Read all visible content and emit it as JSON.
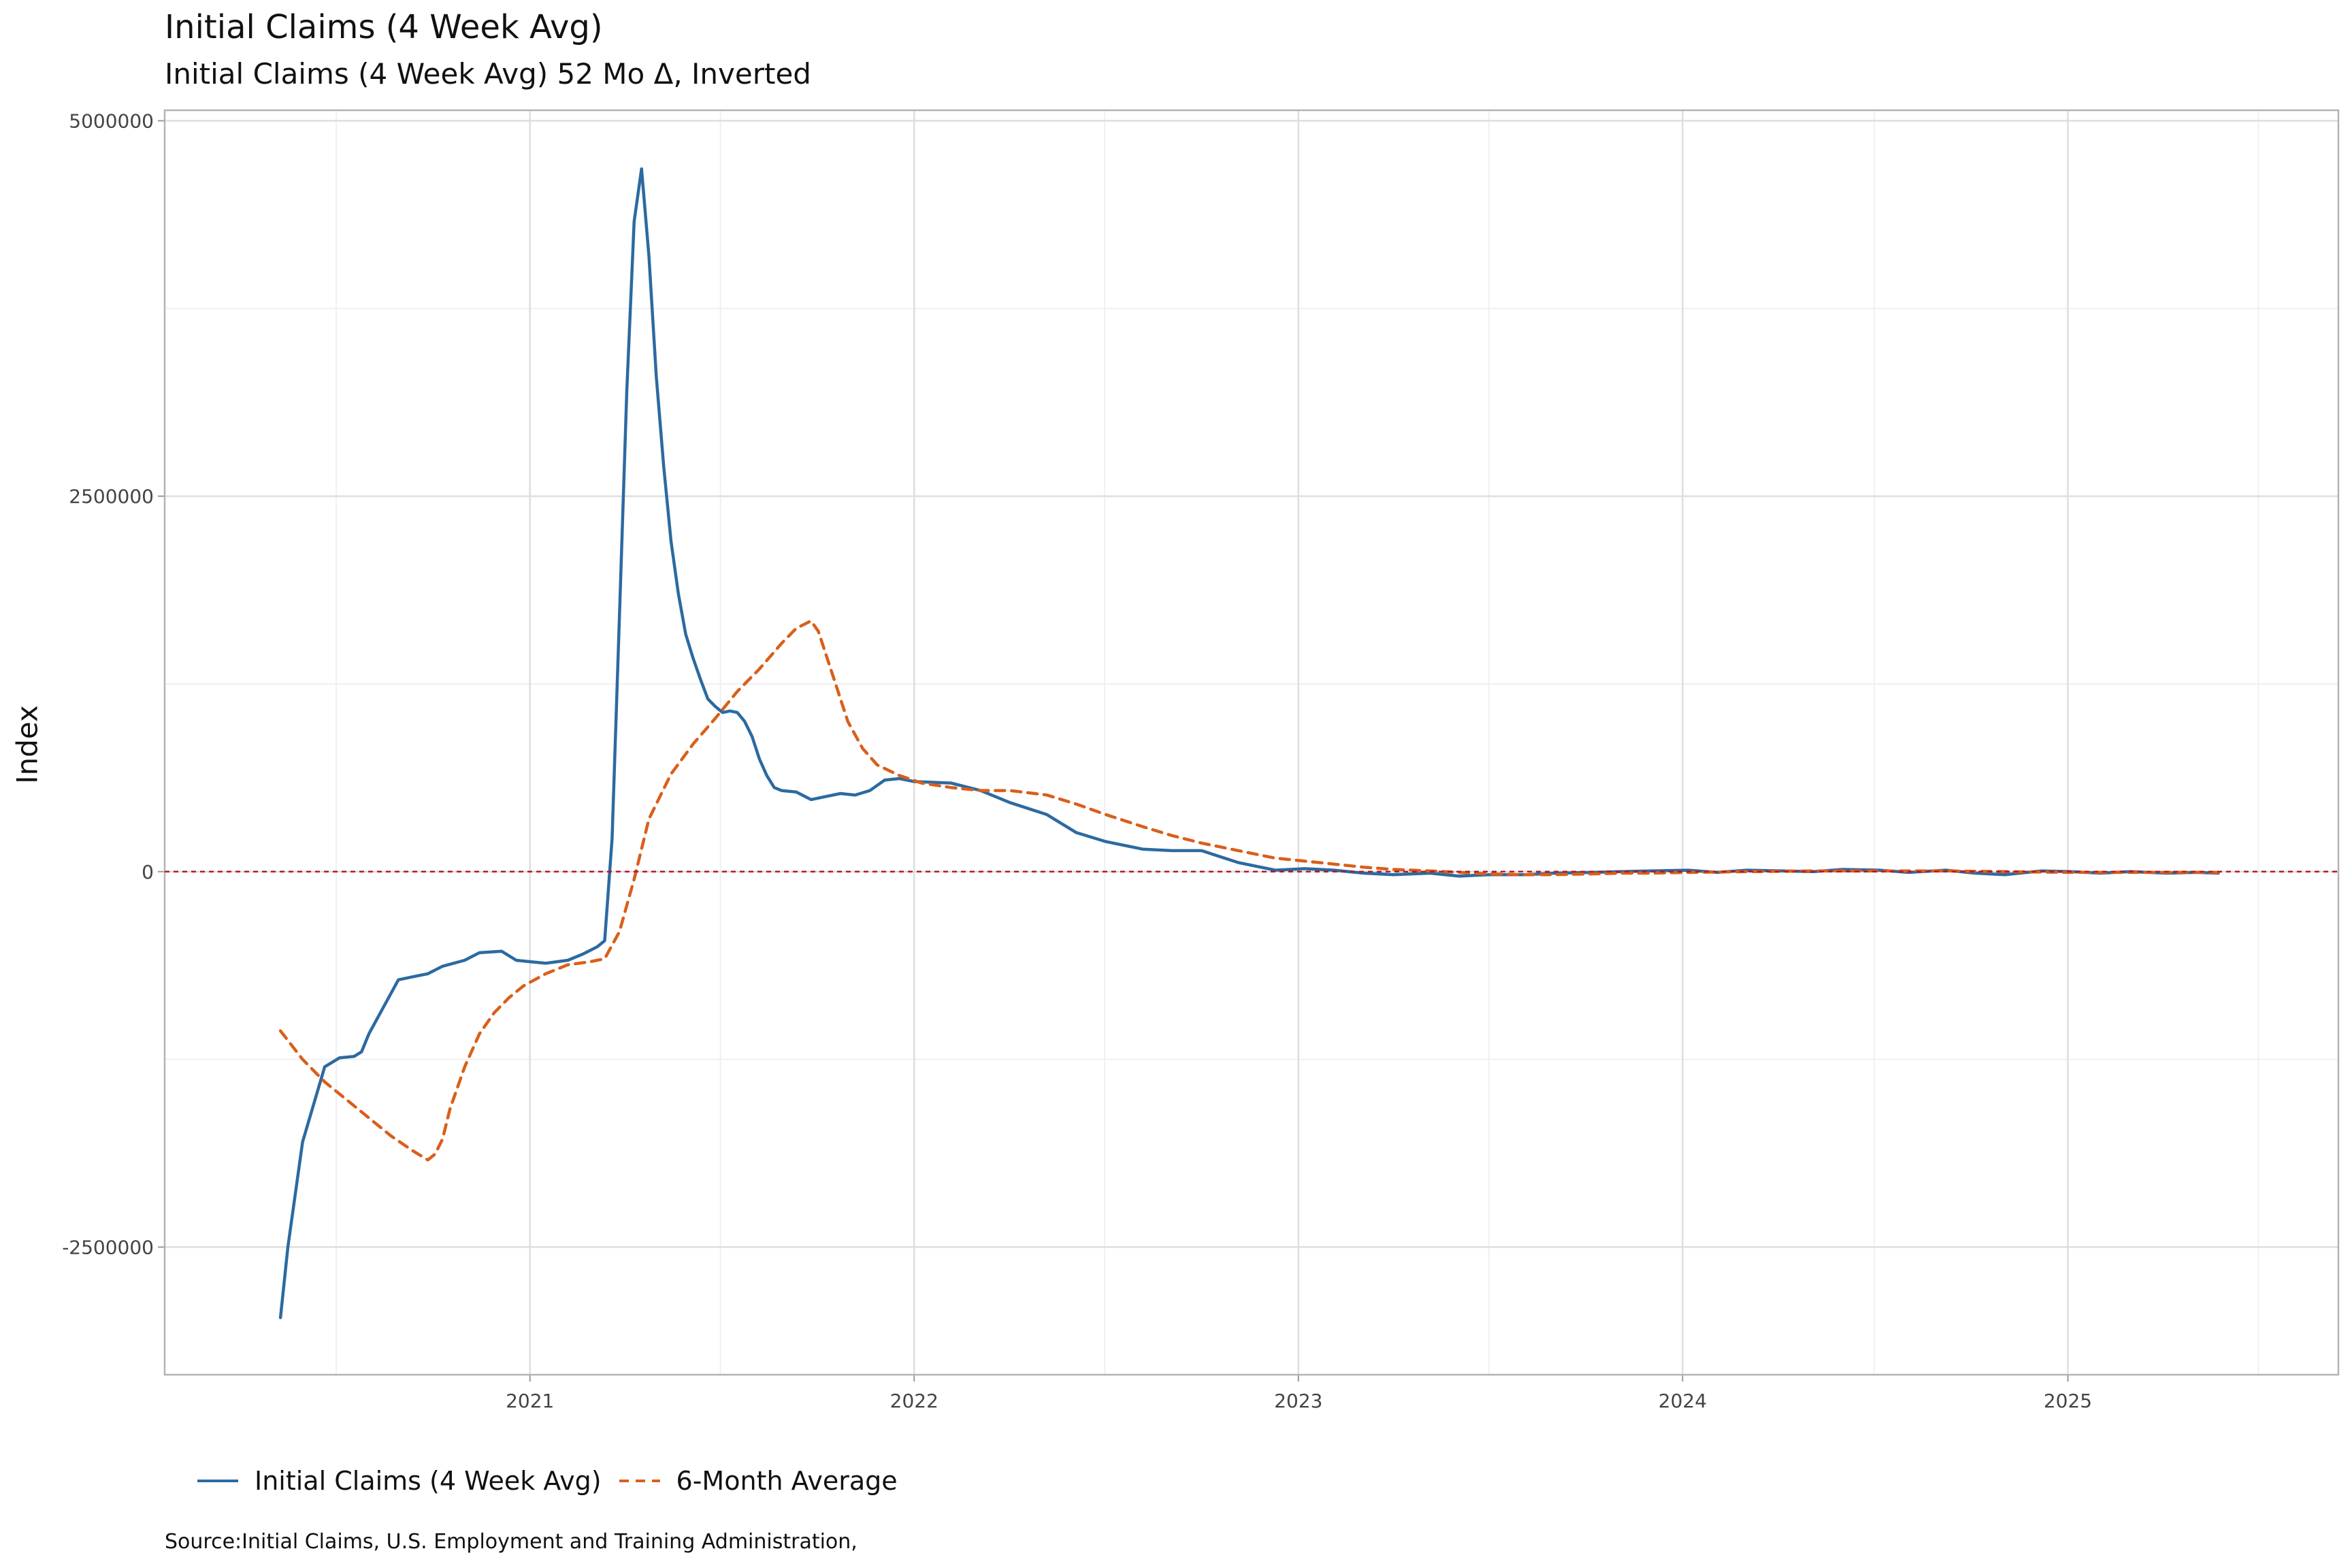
{
  "chart_data": {
    "type": "line",
    "title": "Initial Claims (4 Week Avg)",
    "subtitle": "Initial Claims (4 Week Avg) 52 Mo Δ, Inverted",
    "ylabel": "Index",
    "xlabel": "",
    "source": "Source:Initial Claims, U.S. Employment and Training Administration,",
    "ylim": [
      -3350000,
      5070000
    ],
    "xlim": [
      "2020-01-20",
      "2025-09-15"
    ],
    "y_ticks": [
      -2500000,
      0,
      2500000,
      5000000
    ],
    "y_tick_labels": [
      "-2500000",
      "0",
      "2500000",
      "5000000"
    ],
    "x_ticks": [
      "2021-01-01",
      "2022-01-01",
      "2023-01-01",
      "2024-01-01",
      "2025-01-01"
    ],
    "x_tick_labels": [
      "2021",
      "2022",
      "2023",
      "2024",
      "2025"
    ],
    "grid": true,
    "legend_position": "bottom-left",
    "reference_line": {
      "y": 0,
      "style": "dashed",
      "color": "#b2182b"
    },
    "series": [
      {
        "name": "Initial Claims (4 Week Avg)",
        "color": "#2c6aa0",
        "style": "solid",
        "points": [
          [
            "2020-05-09",
            -2970000
          ],
          [
            "2020-05-16",
            -2500000
          ],
          [
            "2020-05-30",
            -1800000
          ],
          [
            "2020-06-20",
            -1300000
          ],
          [
            "2020-07-04",
            -1240000
          ],
          [
            "2020-07-18",
            -1230000
          ],
          [
            "2020-07-25",
            -1200000
          ],
          [
            "2020-08-01",
            -1080000
          ],
          [
            "2020-08-15",
            -900000
          ],
          [
            "2020-08-29",
            -720000
          ],
          [
            "2020-09-12",
            -700000
          ],
          [
            "2020-09-26",
            -680000
          ],
          [
            "2020-10-10",
            -630000
          ],
          [
            "2020-10-31",
            -590000
          ],
          [
            "2020-11-14",
            -540000
          ],
          [
            "2020-12-05",
            -530000
          ],
          [
            "2020-12-19",
            -590000
          ],
          [
            "2021-01-02",
            -600000
          ],
          [
            "2021-01-16",
            -610000
          ],
          [
            "2021-02-06",
            -590000
          ],
          [
            "2021-02-20",
            -550000
          ],
          [
            "2021-03-06",
            -500000
          ],
          [
            "2021-03-13",
            -460000
          ],
          [
            "2021-03-20",
            220000
          ],
          [
            "2021-03-27",
            1700000
          ],
          [
            "2021-04-03",
            3200000
          ],
          [
            "2021-04-10",
            4330000
          ],
          [
            "2021-04-17",
            4680000
          ],
          [
            "2021-04-24",
            4100000
          ],
          [
            "2021-05-01",
            3300000
          ],
          [
            "2021-05-08",
            2700000
          ],
          [
            "2021-05-15",
            2200000
          ],
          [
            "2021-05-22",
            1850000
          ],
          [
            "2021-05-29",
            1580000
          ],
          [
            "2021-06-05",
            1420000
          ],
          [
            "2021-06-12",
            1280000
          ],
          [
            "2021-06-19",
            1150000
          ],
          [
            "2021-06-26",
            1100000
          ],
          [
            "2021-07-03",
            1060000
          ],
          [
            "2021-07-10",
            1070000
          ],
          [
            "2021-07-17",
            1060000
          ],
          [
            "2021-07-24",
            1000000
          ],
          [
            "2021-07-31",
            900000
          ],
          [
            "2021-08-07",
            750000
          ],
          [
            "2021-08-14",
            640000
          ],
          [
            "2021-08-21",
            560000
          ],
          [
            "2021-08-28",
            540000
          ],
          [
            "2021-09-11",
            530000
          ],
          [
            "2021-09-25",
            480000
          ],
          [
            "2021-10-09",
            500000
          ],
          [
            "2021-10-23",
            520000
          ],
          [
            "2021-11-06",
            510000
          ],
          [
            "2021-11-20",
            540000
          ],
          [
            "2021-12-04",
            610000
          ],
          [
            "2021-12-18",
            620000
          ],
          [
            "2022-01-01",
            600000
          ],
          [
            "2022-02-05",
            590000
          ],
          [
            "2022-03-05",
            540000
          ],
          [
            "2022-04-02",
            460000
          ],
          [
            "2022-05-07",
            380000
          ],
          [
            "2022-06-04",
            260000
          ],
          [
            "2022-07-02",
            200000
          ],
          [
            "2022-08-06",
            150000
          ],
          [
            "2022-09-03",
            140000
          ],
          [
            "2022-10-01",
            140000
          ],
          [
            "2022-11-05",
            60000
          ],
          [
            "2022-12-10",
            10000
          ],
          [
            "2023-01-07",
            20000
          ],
          [
            "2023-02-04",
            10000
          ],
          [
            "2023-03-04",
            -10000
          ],
          [
            "2023-04-01",
            -20000
          ],
          [
            "2023-05-06",
            -10000
          ],
          [
            "2023-06-03",
            -30000
          ],
          [
            "2023-07-01",
            -20000
          ],
          [
            "2023-08-05",
            -20000
          ],
          [
            "2023-09-02",
            -10000
          ],
          [
            "2023-10-07",
            -5000
          ],
          [
            "2023-11-04",
            0
          ],
          [
            "2023-12-02",
            5000
          ],
          [
            "2024-01-06",
            10000
          ],
          [
            "2024-02-03",
            -5000
          ],
          [
            "2024-03-02",
            10000
          ],
          [
            "2024-04-06",
            5000
          ],
          [
            "2024-05-04",
            0
          ],
          [
            "2024-06-01",
            15000
          ],
          [
            "2024-07-06",
            10000
          ],
          [
            "2024-08-03",
            -5000
          ],
          [
            "2024-09-07",
            10000
          ],
          [
            "2024-10-05",
            -10000
          ],
          [
            "2024-11-02",
            -20000
          ],
          [
            "2024-12-07",
            5000
          ],
          [
            "2025-01-04",
            0
          ],
          [
            "2025-02-01",
            -10000
          ],
          [
            "2025-03-01",
            0
          ],
          [
            "2025-04-05",
            -10000
          ],
          [
            "2025-05-03",
            -5000
          ],
          [
            "2025-05-24",
            -10000
          ]
        ]
      },
      {
        "name": "6-Month Average",
        "color": "#d95f1a",
        "style": "dashed",
        "points": [
          [
            "2020-05-09",
            -1060000
          ],
          [
            "2020-05-30",
            -1250000
          ],
          [
            "2020-06-20",
            -1400000
          ],
          [
            "2020-07-11",
            -1520000
          ],
          [
            "2020-08-01",
            -1640000
          ],
          [
            "2020-08-22",
            -1760000
          ],
          [
            "2020-09-12",
            -1860000
          ],
          [
            "2020-09-26",
            -1920000
          ],
          [
            "2020-10-03",
            -1880000
          ],
          [
            "2020-10-10",
            -1780000
          ],
          [
            "2020-10-17",
            -1580000
          ],
          [
            "2020-10-31",
            -1300000
          ],
          [
            "2020-11-14",
            -1080000
          ],
          [
            "2020-11-28",
            -940000
          ],
          [
            "2020-12-12",
            -840000
          ],
          [
            "2020-12-26",
            -760000
          ],
          [
            "2021-01-16",
            -680000
          ],
          [
            "2021-02-06",
            -620000
          ],
          [
            "2021-02-27",
            -600000
          ],
          [
            "2021-03-13",
            -580000
          ],
          [
            "2021-03-27",
            -400000
          ],
          [
            "2021-04-10",
            -50000
          ],
          [
            "2021-04-24",
            350000
          ],
          [
            "2021-05-15",
            650000
          ],
          [
            "2021-06-05",
            850000
          ],
          [
            "2021-06-26",
            1020000
          ],
          [
            "2021-07-17",
            1200000
          ],
          [
            "2021-08-07",
            1350000
          ],
          [
            "2021-08-28",
            1520000
          ],
          [
            "2021-09-11",
            1620000
          ],
          [
            "2021-09-25",
            1670000
          ],
          [
            "2021-10-02",
            1600000
          ],
          [
            "2021-10-16",
            1300000
          ],
          [
            "2021-10-30",
            1000000
          ],
          [
            "2021-11-13",
            820000
          ],
          [
            "2021-11-27",
            710000
          ],
          [
            "2021-12-18",
            640000
          ],
          [
            "2022-01-08",
            590000
          ],
          [
            "2022-02-05",
            560000
          ],
          [
            "2022-03-05",
            540000
          ],
          [
            "2022-04-02",
            540000
          ],
          [
            "2022-05-07",
            510000
          ],
          [
            "2022-06-04",
            450000
          ],
          [
            "2022-07-02",
            380000
          ],
          [
            "2022-08-06",
            300000
          ],
          [
            "2022-09-03",
            240000
          ],
          [
            "2022-10-01",
            190000
          ],
          [
            "2022-11-05",
            140000
          ],
          [
            "2022-12-10",
            90000
          ],
          [
            "2023-01-07",
            70000
          ],
          [
            "2023-02-04",
            50000
          ],
          [
            "2023-03-04",
            30000
          ],
          [
            "2023-04-01",
            15000
          ],
          [
            "2023-05-06",
            5000
          ],
          [
            "2023-06-03",
            -5000
          ],
          [
            "2023-07-01",
            -15000
          ],
          [
            "2023-08-05",
            -20000
          ],
          [
            "2023-09-02",
            -20000
          ],
          [
            "2023-10-07",
            -15000
          ],
          [
            "2023-11-04",
            -10000
          ],
          [
            "2023-12-02",
            -10000
          ],
          [
            "2024-01-06",
            -5000
          ],
          [
            "2024-03-02",
            0
          ],
          [
            "2024-05-04",
            5000
          ],
          [
            "2024-07-06",
            5000
          ],
          [
            "2024-09-07",
            5000
          ],
          [
            "2024-11-02",
            0
          ],
          [
            "2025-01-04",
            -5000
          ],
          [
            "2025-03-01",
            -5000
          ],
          [
            "2025-05-24",
            -5000
          ]
        ]
      }
    ]
  }
}
